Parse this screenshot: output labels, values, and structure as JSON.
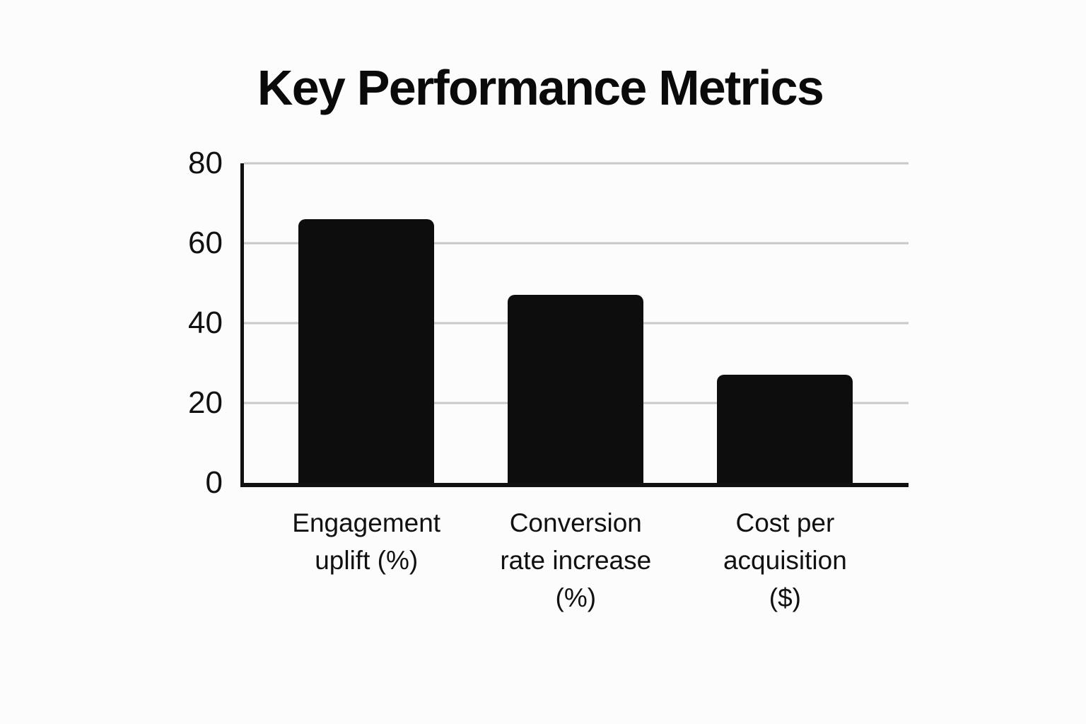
{
  "chart_data": {
    "type": "bar",
    "title": "Key Performance Metrics",
    "categories": [
      "Engagement uplift (%)",
      "Conversion rate increase (%)",
      "Cost per acquisition ($)"
    ],
    "category_lines": [
      [
        "Engagement",
        "uplift (%)"
      ],
      [
        "Conversion",
        "rate increase",
        "(%)"
      ],
      [
        "Cost per",
        "acquisition",
        "($)"
      ]
    ],
    "values": [
      66,
      47,
      27
    ],
    "xlabel": "",
    "ylabel": "",
    "ylim": [
      0,
      80
    ],
    "yticks": [
      0,
      20,
      40,
      60,
      80
    ],
    "grid": true,
    "legend": false,
    "bar_color": "#0d0d0d",
    "gridline_color": "#c9c9c9",
    "axis_color": "#111111",
    "text_color": "#111111",
    "background_color": "#fcfcfc"
  }
}
